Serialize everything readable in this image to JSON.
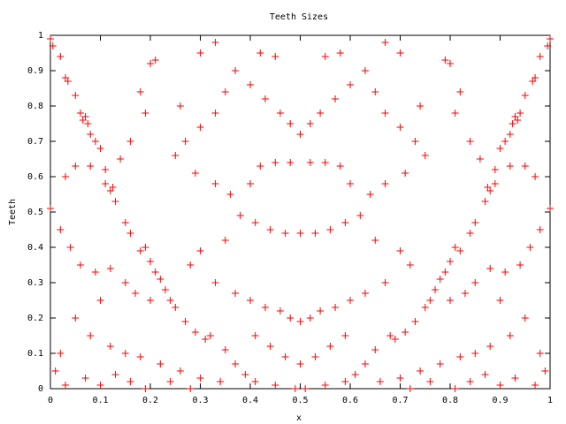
{
  "chart_data": {
    "type": "scatter",
    "title": "Teeth Sizes",
    "x_label": "x",
    "y_label": "Teeth",
    "color": "#ff0000",
    "grid": false,
    "xlim": [
      0,
      1
    ],
    "ylim": [
      0,
      1
    ],
    "xticks": [
      0,
      0.1,
      0.2,
      0.3,
      0.4,
      0.5,
      0.6,
      0.7,
      0.8,
      0.9,
      1
    ],
    "yticks": [
      0,
      0.1,
      0.2,
      0.3,
      0.4,
      0.5,
      0.6,
      0.7,
      0.8,
      0.9,
      1
    ],
    "x": [
      0,
      0.005,
      0.02,
      0.03,
      0.035,
      0.05,
      0.06,
      0.065,
      0.07,
      0.075,
      0.08,
      0.09,
      0.1,
      0.11,
      0.12,
      0.125,
      0.13,
      0.15,
      0.16,
      0.18,
      0.19,
      0.2,
      0.21,
      0.22,
      0.23,
      0.24,
      0.25,
      0.27,
      0.29,
      0.31,
      0.32,
      0.35,
      0.37,
      0.39,
      0.41,
      0.45,
      0.49,
      1,
      0.995,
      0.98,
      0.97,
      0.965,
      0.95,
      0.94,
      0.935,
      0.93,
      0.925,
      0.92,
      0.91,
      0.9,
      0.89,
      0.88,
      0.875,
      0.87,
      0.85,
      0.84,
      0.82,
      0.81,
      0.8,
      0.79,
      0.78,
      0.77,
      0.76,
      0.75,
      0.73,
      0.71,
      0.69,
      0.68,
      0.65,
      0.63,
      0.61,
      0.59,
      0.55,
      0.51,
      0.2,
      0.21,
      0.18,
      0.19,
      0.16,
      0.14,
      0.11,
      0.08,
      0.05,
      0.03,
      0,
      0.02,
      0.04,
      0.06,
      0.09,
      0.12,
      0.15,
      0.17,
      0.2,
      0.1,
      0.05,
      0.08,
      0.12,
      0.15,
      0.18,
      0.22,
      0.26,
      0.3,
      0.34,
      0.02,
      0.01,
      0.03,
      0.07,
      0.1,
      0.13,
      0.16,
      0.19,
      0.24,
      0.28,
      0.3,
      0.33,
      0.37,
      0.4,
      0.42,
      0.45,
      0.43,
      0.46,
      0.48,
      0.35,
      0.33,
      0.3,
      0.27,
      0.25,
      0.26,
      0.29,
      0.33,
      0.36,
      0.4,
      0.42,
      0.45,
      0.48,
      0.38,
      0.41,
      0.44,
      0.47,
      0.35,
      0.3,
      0.28,
      0.33,
      0.37,
      0.4,
      0.43,
      0.46,
      0.48,
      0.41,
      0.44,
      0.47,
      0.8,
      0.79,
      0.82,
      0.81,
      0.84,
      0.86,
      0.89,
      0.92,
      0.95,
      0.97,
      1,
      0.98,
      0.96,
      0.94,
      0.91,
      0.88,
      0.85,
      0.83,
      0.8,
      0.9,
      0.95,
      0.92,
      0.88,
      0.85,
      0.82,
      0.78,
      0.74,
      0.7,
      0.66,
      0.98,
      0.99,
      0.97,
      0.93,
      0.9,
      0.87,
      0.84,
      0.81,
      0.76,
      0.72,
      0.7,
      0.67,
      0.63,
      0.6,
      0.58,
      0.55,
      0.57,
      0.54,
      0.52,
      0.65,
      0.67,
      0.7,
      0.73,
      0.75,
      0.74,
      0.71,
      0.67,
      0.64,
      0.6,
      0.58,
      0.55,
      0.52,
      0.62,
      0.59,
      0.56,
      0.53,
      0.65,
      0.7,
      0.72,
      0.67,
      0.63,
      0.6,
      0.57,
      0.54,
      0.52,
      0.59,
      0.56,
      0.53,
      0.5,
      0.5,
      0.5,
      0.5
    ],
    "values": [
      0.99,
      0.97,
      0.94,
      0.88,
      0.87,
      0.83,
      0.78,
      0.76,
      0.77,
      0.75,
      0.72,
      0.7,
      0.68,
      0.58,
      0.56,
      0.57,
      0.53,
      0.47,
      0.44,
      0.39,
      0.4,
      0.36,
      0.33,
      0.31,
      0.28,
      0.25,
      0.23,
      0.19,
      0.16,
      0.14,
      0.15,
      0.11,
      0.07,
      0.04,
      0.02,
      0.01,
      0,
      0.99,
      0.97,
      0.94,
      0.88,
      0.87,
      0.83,
      0.78,
      0.76,
      0.77,
      0.75,
      0.72,
      0.7,
      0.68,
      0.58,
      0.56,
      0.57,
      0.53,
      0.47,
      0.44,
      0.39,
      0.4,
      0.36,
      0.33,
      0.31,
      0.28,
      0.25,
      0.23,
      0.19,
      0.16,
      0.14,
      0.15,
      0.11,
      0.07,
      0.04,
      0.02,
      0.01,
      0,
      0.92,
      0.93,
      0.84,
      0.78,
      0.7,
      0.65,
      0.62,
      0.63,
      0.63,
      0.6,
      0.51,
      0.45,
      0.4,
      0.35,
      0.33,
      0.34,
      0.3,
      0.27,
      0.25,
      0.25,
      0.2,
      0.15,
      0.12,
      0.1,
      0.09,
      0.07,
      0.05,
      0.03,
      0.02,
      0.1,
      0.05,
      0.01,
      0.03,
      0.01,
      0.04,
      0.02,
      0,
      0.02,
      0,
      0.95,
      0.98,
      0.9,
      0.86,
      0.95,
      0.94,
      0.82,
      0.78,
      0.75,
      0.84,
      0.78,
      0.74,
      0.7,
      0.66,
      0.8,
      0.61,
      0.58,
      0.55,
      0.58,
      0.63,
      0.64,
      0.64,
      0.49,
      0.47,
      0.45,
      0.44,
      0.42,
      0.39,
      0.35,
      0.3,
      0.27,
      0.25,
      0.23,
      0.22,
      0.2,
      0.15,
      0.12,
      0.09,
      0.92,
      0.93,
      0.84,
      0.78,
      0.7,
      0.65,
      0.62,
      0.63,
      0.63,
      0.6,
      0.51,
      0.45,
      0.4,
      0.35,
      0.33,
      0.34,
      0.3,
      0.27,
      0.25,
      0.25,
      0.2,
      0.15,
      0.12,
      0.1,
      0.09,
      0.07,
      0.05,
      0.03,
      0.02,
      0.1,
      0.05,
      0.01,
      0.03,
      0.01,
      0.04,
      0.02,
      0,
      0.02,
      0,
      0.95,
      0.98,
      0.9,
      0.86,
      0.95,
      0.94,
      0.82,
      0.78,
      0.75,
      0.84,
      0.78,
      0.74,
      0.7,
      0.66,
      0.8,
      0.61,
      0.58,
      0.55,
      0.58,
      0.63,
      0.64,
      0.64,
      0.49,
      0.47,
      0.45,
      0.44,
      0.42,
      0.39,
      0.35,
      0.3,
      0.27,
      0.25,
      0.23,
      0.22,
      0.2,
      0.15,
      0.12,
      0.09,
      0.72,
      0.44,
      0.19,
      0.07
    ]
  }
}
